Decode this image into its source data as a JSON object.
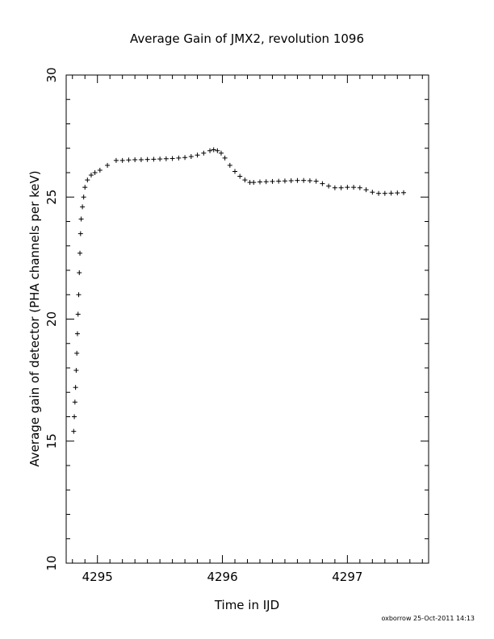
{
  "chart_data": {
    "type": "scatter",
    "title": "Average Gain of JMX2, revolution 1096",
    "xlabel": "Time in IJD",
    "ylabel": "Average gain of detector (PHA channels per keV)",
    "xlim": [
      4294.75,
      4297.65
    ],
    "ylim": [
      10,
      30
    ],
    "xticks": [
      4295,
      4296,
      4297
    ],
    "yticks": [
      10,
      15,
      20,
      25,
      30
    ],
    "grid": false,
    "marker": "+",
    "series": [
      {
        "x": [
          4294.81,
          4294.815,
          4294.82,
          4294.825,
          4294.83,
          4294.835,
          4294.84,
          4294.845,
          4294.85,
          4294.855,
          4294.86,
          4294.865,
          4294.87,
          4294.88,
          4294.89,
          4294.9,
          4294.92,
          4294.95,
          4294.98,
          4295.02,
          4295.08,
          4295.15,
          4295.2,
          4295.25,
          4295.3,
          4295.35,
          4295.4,
          4295.45,
          4295.5,
          4295.55,
          4295.6,
          4295.65,
          4295.7,
          4295.75,
          4295.8,
          4295.85,
          4295.9,
          4295.93,
          4295.96,
          4295.99,
          4296.02,
          4296.06,
          4296.1,
          4296.14,
          4296.18,
          4296.22,
          4296.25,
          4296.3,
          4296.35,
          4296.4,
          4296.45,
          4296.5,
          4296.55,
          4296.6,
          4296.65,
          4296.7,
          4296.75,
          4296.8,
          4296.85,
          4296.9,
          4296.95,
          4297.0,
          4297.05,
          4297.1,
          4297.15,
          4297.2,
          4297.25,
          4297.3,
          4297.35,
          4297.4,
          4297.45
        ],
        "y": [
          15.4,
          16.0,
          16.6,
          17.2,
          17.9,
          18.6,
          19.4,
          20.2,
          21.0,
          21.9,
          22.7,
          23.5,
          24.1,
          24.6,
          25.0,
          25.4,
          25.7,
          25.9,
          26.0,
          26.1,
          26.3,
          26.5,
          26.5,
          26.52,
          26.53,
          26.53,
          26.54,
          26.55,
          26.56,
          26.57,
          26.58,
          26.6,
          26.62,
          26.66,
          26.72,
          26.8,
          26.9,
          26.94,
          26.9,
          26.8,
          26.6,
          26.3,
          26.05,
          25.85,
          25.7,
          25.6,
          25.6,
          25.62,
          25.63,
          25.64,
          25.65,
          25.66,
          25.67,
          25.68,
          25.68,
          25.67,
          25.65,
          25.55,
          25.45,
          25.38,
          25.38,
          25.4,
          25.4,
          25.38,
          25.3,
          25.2,
          25.15,
          25.15,
          25.16,
          25.17,
          25.18
        ]
      }
    ]
  },
  "footer": "oxborrow 25-Oct-2011 14:13"
}
